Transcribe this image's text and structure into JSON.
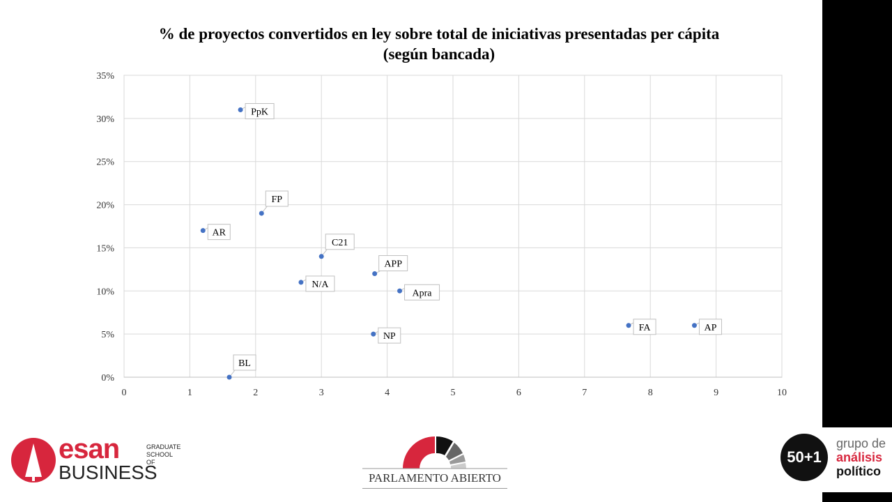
{
  "chart_data": {
    "type": "scatter",
    "title": "% de proyectos convertidos en ley sobre total de iniciativas presentadas per cápita",
    "subtitle": "(según bancada)",
    "xlabel": "",
    "ylabel": "",
    "xlim": [
      0,
      10
    ],
    "ylim": [
      0,
      35
    ],
    "x_ticks": [
      "0",
      "1",
      "2",
      "3",
      "4",
      "5",
      "6",
      "7",
      "8",
      "9",
      "10"
    ],
    "y_ticks": [
      "0%",
      "5%",
      "10%",
      "15%",
      "20%",
      "25%",
      "30%",
      "35%"
    ],
    "grid": true,
    "marker_color": "#4472C4",
    "points": [
      {
        "label": "PpK",
        "x": 1.77,
        "y": 31
      },
      {
        "label": "FP",
        "x": 2.09,
        "y": 19
      },
      {
        "label": "AR",
        "x": 1.2,
        "y": 17
      },
      {
        "label": "C21",
        "x": 3.0,
        "y": 14
      },
      {
        "label": "APP",
        "x": 3.81,
        "y": 12
      },
      {
        "label": "N/A",
        "x": 2.69,
        "y": 11
      },
      {
        "label": "Apra",
        "x": 4.19,
        "y": 10
      },
      {
        "label": "NP",
        "x": 3.79,
        "y": 5
      },
      {
        "label": "BL",
        "x": 1.6,
        "y": 0
      },
      {
        "label": "FA",
        "x": 7.67,
        "y": 6
      },
      {
        "label": "AP",
        "x": 8.67,
        "y": 6
      }
    ]
  },
  "logos": {
    "esan": {
      "main": "esan",
      "small1": "GRADUATE",
      "small2": "SCHOOL OF",
      "sub": "BUSINESS",
      "color": "#D7263D"
    },
    "parlamento": "PARLAMENTO ABIERTO",
    "grupo": {
      "badge": "50+1",
      "line1": "grupo de",
      "line2": "análisis",
      "line3": "político"
    }
  }
}
